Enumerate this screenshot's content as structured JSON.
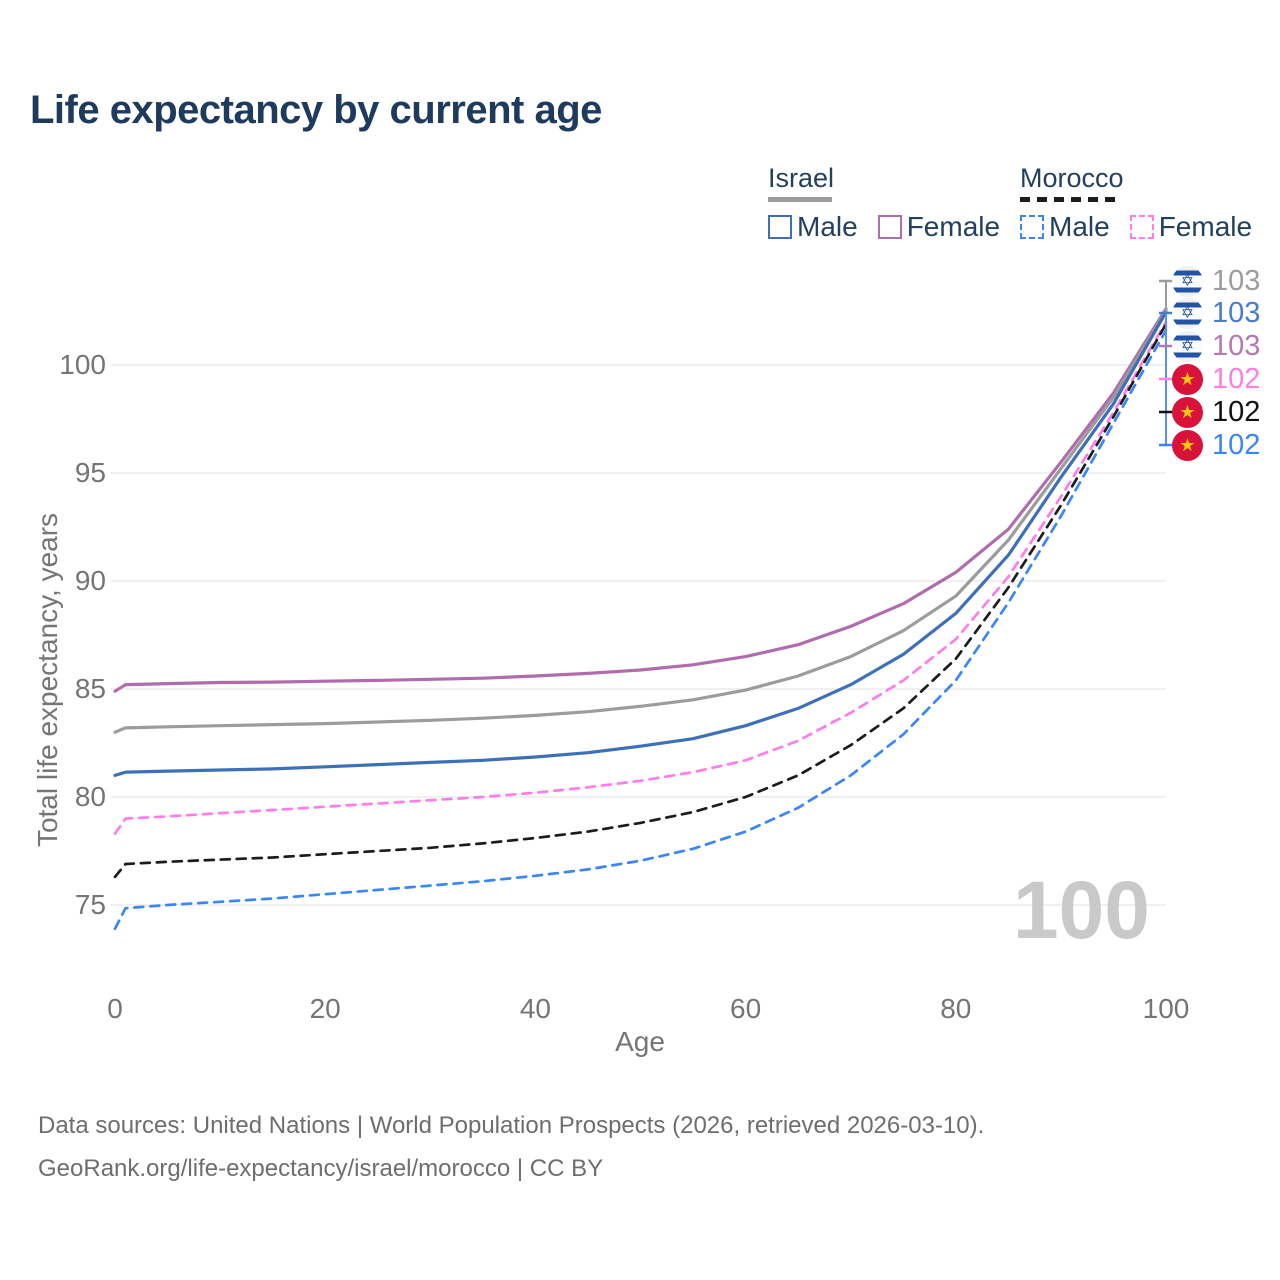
{
  "title": "Life expectancy by current age",
  "watermark": "100",
  "footer": {
    "line1": "Data sources: United Nations | World Population Prospects (2026, retrieved 2026-03-10).",
    "line2": "GeoRank.org/life-expectancy/israel/morocco | CC BY"
  },
  "colors": {
    "title": "#1e3a5c",
    "axis_text": "#757575",
    "grid": "#ececec",
    "watermark": "#c9c9c9",
    "legend_text": "#23405e",
    "israel_male": "#3e6fb9",
    "israel_female": "#b06cae",
    "israel_both": "#9c9c9c",
    "morocco_male": "#3b86f7",
    "morocco_female": "#ff7de8",
    "morocco_both": "#1c1c1c"
  },
  "legend": {
    "groups": [
      {
        "name": "Israel",
        "style": "solid",
        "underline_color": "#9c9c9c",
        "items": [
          {
            "label": "Male",
            "color": "#3e6fb9",
            "dashed": false
          },
          {
            "label": "Female",
            "color": "#b06cae",
            "dashed": false
          }
        ]
      },
      {
        "name": "Morocco",
        "style": "dashed",
        "underline_color": "#1c1c1c",
        "items": [
          {
            "label": "Male",
            "color": "#3b86f7",
            "dashed": true
          },
          {
            "label": "Female",
            "color": "#ff7de8",
            "dashed": true
          }
        ]
      }
    ]
  },
  "axes": {
    "x": {
      "label": "Age",
      "ticks": [
        0,
        20,
        40,
        60,
        80,
        100
      ],
      "range": [
        0,
        100
      ]
    },
    "y": {
      "label": "Total life expectancy, years",
      "ticks": [
        75,
        80,
        85,
        90,
        95,
        100
      ],
      "range": [
        73,
        103.5
      ]
    }
  },
  "end_labels": [
    {
      "id": "israel-both",
      "value": "103",
      "flag": "israel",
      "color": "#9c9c9c"
    },
    {
      "id": "israel-male",
      "value": "103",
      "flag": "israel",
      "color": "#4a7cc9"
    },
    {
      "id": "israel-female",
      "value": "103",
      "flag": "israel",
      "color": "#b579b2"
    },
    {
      "id": "morocco-female",
      "value": "102",
      "flag": "morocco",
      "color": "#ff7de8"
    },
    {
      "id": "morocco-both",
      "value": "102",
      "flag": "morocco",
      "color": "#111111"
    },
    {
      "id": "morocco-male",
      "value": "102",
      "flag": "morocco",
      "color": "#3b86f7"
    }
  ],
  "chart_data": {
    "type": "line",
    "title": "Life expectancy by current age",
    "xlabel": "Age",
    "ylabel": "Total life expectancy, years",
    "xlim": [
      0,
      100
    ],
    "ylim": [
      73,
      103.5
    ],
    "grid": true,
    "legend_position": "top-right",
    "x": [
      0,
      1,
      5,
      10,
      15,
      20,
      25,
      30,
      35,
      40,
      45,
      50,
      55,
      60,
      65,
      70,
      75,
      80,
      85,
      90,
      95,
      100
    ],
    "series": [
      {
        "name": "Israel Female",
        "country": "Israel",
        "sex": "Female",
        "color": "#b06cae",
        "dash": "solid",
        "end_label": "103",
        "values": [
          84.9,
          85.2,
          85.25,
          85.3,
          85.32,
          85.36,
          85.4,
          85.45,
          85.5,
          85.6,
          85.72,
          85.88,
          86.12,
          86.5,
          87.05,
          87.9,
          88.95,
          90.4,
          92.4,
          95.5,
          98.7,
          102.6
        ]
      },
      {
        "name": "Israel Both sexes",
        "country": "Israel",
        "sex": "Both",
        "color": "#9c9c9c",
        "dash": "solid",
        "end_label": "103",
        "values": [
          83.0,
          83.2,
          83.25,
          83.3,
          83.35,
          83.4,
          83.47,
          83.55,
          83.65,
          83.78,
          83.95,
          84.2,
          84.5,
          84.95,
          85.6,
          86.5,
          87.7,
          89.3,
          91.9,
          95.2,
          98.5,
          102.5
        ]
      },
      {
        "name": "Israel Male",
        "country": "Israel",
        "sex": "Male",
        "color": "#3e6fb9",
        "dash": "solid",
        "end_label": "103",
        "values": [
          81.0,
          81.15,
          81.2,
          81.25,
          81.3,
          81.4,
          81.5,
          81.6,
          81.7,
          81.85,
          82.05,
          82.35,
          82.7,
          83.3,
          84.1,
          85.2,
          86.6,
          88.5,
          91.2,
          94.8,
          98.2,
          102.45
        ]
      },
      {
        "name": "Morocco Female",
        "country": "Morocco",
        "sex": "Female",
        "color": "#ff7de8",
        "dash": "dashed",
        "end_label": "102",
        "values": [
          78.3,
          79.0,
          79.1,
          79.25,
          79.4,
          79.55,
          79.7,
          79.85,
          80.0,
          80.2,
          80.45,
          80.75,
          81.15,
          81.7,
          82.6,
          83.9,
          85.4,
          87.3,
          90.2,
          93.9,
          97.8,
          102.0
        ]
      },
      {
        "name": "Morocco Both sexes",
        "country": "Morocco",
        "sex": "Both",
        "color": "#1c1c1c",
        "dash": "dashed",
        "end_label": "102",
        "values": [
          76.3,
          76.9,
          77.0,
          77.1,
          77.2,
          77.35,
          77.5,
          77.65,
          77.85,
          78.1,
          78.4,
          78.8,
          79.3,
          80.0,
          81.0,
          82.4,
          84.1,
          86.4,
          89.7,
          93.5,
          97.6,
          101.9
        ]
      },
      {
        "name": "Morocco Male",
        "country": "Morocco",
        "sex": "Male",
        "color": "#3b86f7",
        "dash": "dashed",
        "end_label": "102",
        "values": [
          73.9,
          74.85,
          75.0,
          75.15,
          75.3,
          75.5,
          75.7,
          75.9,
          76.1,
          76.35,
          76.65,
          77.05,
          77.6,
          78.4,
          79.5,
          81.0,
          82.9,
          85.4,
          89.0,
          93.0,
          97.3,
          101.6
        ]
      }
    ]
  }
}
